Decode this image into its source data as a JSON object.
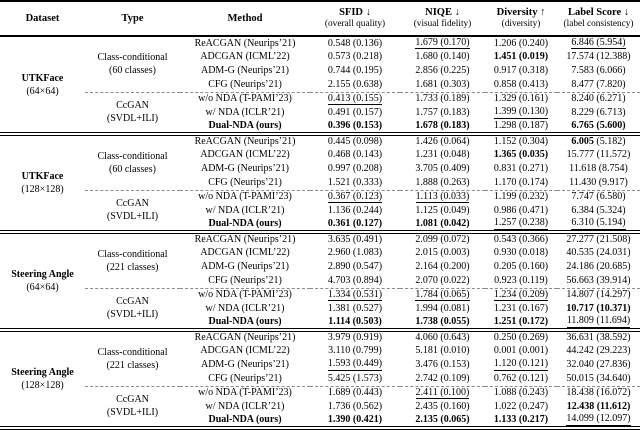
{
  "table": {
    "header": {
      "dataset": "Dataset",
      "type": "Type",
      "method": "Method",
      "metrics": [
        {
          "title": "SFID ↓",
          "subtitle": "(overall quality)"
        },
        {
          "title": "NIQE ↓",
          "subtitle": "(visual fidelity)"
        },
        {
          "title": "Diversity ↑",
          "subtitle": "(diversity)"
        },
        {
          "title": "Label Score ↓",
          "subtitle": "(label consistency)"
        }
      ]
    },
    "blocks": [
      {
        "dataset": "UTKFace",
        "resolution": "(64×64)",
        "groups": [
          {
            "type": "Class-conditional",
            "type_detail": "(60 classes)",
            "rows": [
              {
                "method": "ReACGAN (Neurips’21)",
                "method_bold": false,
                "cells": [
                  {
                    "text": "0.548 (0.136)",
                    "style": "n"
                  },
                  {
                    "text": "1.679 (0.170)",
                    "style": "u"
                  },
                  {
                    "text": "1.206 (0.240)",
                    "style": "n"
                  },
                  {
                    "text": "6.846 (5.954)",
                    "style": "u"
                  }
                ]
              },
              {
                "method": "ADCGAN (ICML’22)",
                "method_bold": false,
                "cells": [
                  {
                    "text": "0.573 (0.218)",
                    "style": "n"
                  },
                  {
                    "text": "1.680 (0.140)",
                    "style": "n"
                  },
                  {
                    "text": "1.451 (0.019)",
                    "style": "b"
                  },
                  {
                    "text": "17.574 (12.388)",
                    "style": "n"
                  }
                ]
              },
              {
                "method": "ADM-G (Neurips’21)",
                "method_bold": false,
                "cells": [
                  {
                    "text": "0.744 (0.195)",
                    "style": "n"
                  },
                  {
                    "text": "2.856 (0.225)",
                    "style": "n"
                  },
                  {
                    "text": "0.917 (0.318)",
                    "style": "n"
                  },
                  {
                    "text": "7.583 (6.066)",
                    "style": "n"
                  }
                ]
              },
              {
                "method": "CFG (Neurips’21)",
                "method_bold": false,
                "cells": [
                  {
                    "text": "2.155 (0.638)",
                    "style": "n"
                  },
                  {
                    "text": "1.681 (0.303)",
                    "style": "n"
                  },
                  {
                    "text": "0.858 (0.413)",
                    "style": "n"
                  },
                  {
                    "text": "8.477 (7.820)",
                    "style": "n"
                  }
                ]
              }
            ]
          },
          {
            "type": "CcGAN",
            "type_detail": "(SVDL+ILI)",
            "rows": [
              {
                "method": "w/o NDA (T-PAMI’23)",
                "method_bold": false,
                "cells": [
                  {
                    "text": "0.413 (0.155)",
                    "style": "u"
                  },
                  {
                    "text": "1.733 (0.189)",
                    "style": "n"
                  },
                  {
                    "text": "1.329 (0.161)",
                    "style": "n"
                  },
                  {
                    "text": "8.240 (6.271)",
                    "style": "n"
                  }
                ]
              },
              {
                "method": "w/ NDA (ICLR’21)",
                "method_bold": false,
                "cells": [
                  {
                    "text": "0.491 (0.157)",
                    "style": "n"
                  },
                  {
                    "text": "1.757 (0.183)",
                    "style": "n"
                  },
                  {
                    "text": "1.399 (0.130)",
                    "style": "u"
                  },
                  {
                    "text": "8.229 (6.713)",
                    "style": "n"
                  }
                ]
              },
              {
                "method": "Dual-NDA (ours)",
                "method_bold": true,
                "cells": [
                  {
                    "text": "0.396 (0.153)",
                    "style": "b"
                  },
                  {
                    "text": "1.678 (0.183)",
                    "style": "b"
                  },
                  {
                    "text": "1.298 (0.187)",
                    "style": "n"
                  },
                  {
                    "text": "6.765 (5.600)",
                    "style": "b"
                  }
                ]
              }
            ]
          }
        ]
      },
      {
        "dataset": "UTKFace",
        "resolution": "(128×128)",
        "groups": [
          {
            "type": "Class-conditional",
            "type_detail": "(60 classes)",
            "rows": [
              {
                "method": "ReACGAN (Neurips’21)",
                "method_bold": false,
                "cells": [
                  {
                    "text": "0.445 (0.098)",
                    "style": "n"
                  },
                  {
                    "text": "1.426 (0.064)",
                    "style": "n"
                  },
                  {
                    "text": "1.152 (0.304)",
                    "style": "n"
                  },
                  {
                    "text": "6.005 (5.182)",
                    "style": "bm"
                  }
                ]
              },
              {
                "method": "ADCGAN (ICML’22)",
                "method_bold": false,
                "cells": [
                  {
                    "text": "0.468 (0.143)",
                    "style": "n"
                  },
                  {
                    "text": "1.231 (0.048)",
                    "style": "n"
                  },
                  {
                    "text": "1.365 (0.035)",
                    "style": "b"
                  },
                  {
                    "text": "15.777 (11.572)",
                    "style": "n"
                  }
                ]
              },
              {
                "method": "ADM-G (Neurips’21)",
                "method_bold": false,
                "cells": [
                  {
                    "text": "0.997 (0.208)",
                    "style": "n"
                  },
                  {
                    "text": "3.705 (0.409)",
                    "style": "n"
                  },
                  {
                    "text": "0.831 (0.271)",
                    "style": "n"
                  },
                  {
                    "text": "11.618 (8.754)",
                    "style": "n"
                  }
                ]
              },
              {
                "method": "CFG (Neurips’21)",
                "method_bold": false,
                "cells": [
                  {
                    "text": "1.521 (0.333)",
                    "style": "n"
                  },
                  {
                    "text": "1.888 (0.263)",
                    "style": "n"
                  },
                  {
                    "text": "1.170 (0.174)",
                    "style": "n"
                  },
                  {
                    "text": "11.430 (9.917)",
                    "style": "n"
                  }
                ]
              }
            ]
          },
          {
            "type": "CcGAN",
            "type_detail": "(SVDL+ILI)",
            "rows": [
              {
                "method": "w/o NDA (T-PAMI’23)",
                "method_bold": false,
                "cells": [
                  {
                    "text": "0.367 (0.123)",
                    "style": "u"
                  },
                  {
                    "text": "1.113 (0.033)",
                    "style": "u"
                  },
                  {
                    "text": "1.199 (0.232)",
                    "style": "n"
                  },
                  {
                    "text": "7.747 (6.580)",
                    "style": "n"
                  }
                ]
              },
              {
                "method": "w/ NDA (ICLR’21)",
                "method_bold": false,
                "cells": [
                  {
                    "text": "1.136 (0.244)",
                    "style": "n"
                  },
                  {
                    "text": "1.125 (0.049)",
                    "style": "n"
                  },
                  {
                    "text": "0.986 (0.471)",
                    "style": "n"
                  },
                  {
                    "text": "6.384 (5.324)",
                    "style": "n"
                  }
                ]
              },
              {
                "method": "Dual-NDA (ours)",
                "method_bold": true,
                "cells": [
                  {
                    "text": "0.361 (0.127)",
                    "style": "b"
                  },
                  {
                    "text": "1.081 (0.042)",
                    "style": "b"
                  },
                  {
                    "text": "1.257 (0.238)",
                    "style": "u"
                  },
                  {
                    "text": "6.310 (5.194)",
                    "style": "u"
                  }
                ]
              }
            ]
          }
        ]
      },
      {
        "dataset": "Steering Angle",
        "resolution": "(64×64)",
        "groups": [
          {
            "type": "Class-conditional",
            "type_detail": "(221 classes)",
            "rows": [
              {
                "method": "ReACGAN (Neurips’21)",
                "method_bold": false,
                "cells": [
                  {
                    "text": "3.635 (0.491)",
                    "style": "n"
                  },
                  {
                    "text": "2.099 (0.072)",
                    "style": "n"
                  },
                  {
                    "text": "0.543 (0.366)",
                    "style": "n"
                  },
                  {
                    "text": "27.277 (21.508)",
                    "style": "n"
                  }
                ]
              },
              {
                "method": "ADCGAN (ICML’22)",
                "method_bold": false,
                "cells": [
                  {
                    "text": "2.960 (1.083)",
                    "style": "n"
                  },
                  {
                    "text": "2.015 (0.003)",
                    "style": "n"
                  },
                  {
                    "text": "0.930 (0.018)",
                    "style": "n"
                  },
                  {
                    "text": "40.535 (24.031)",
                    "style": "n"
                  }
                ]
              },
              {
                "method": "ADM-G (Neurips’21)",
                "method_bold": false,
                "cells": [
                  {
                    "text": "2.890 (0.547)",
                    "style": "n"
                  },
                  {
                    "text": "2.164 (0.200)",
                    "style": "n"
                  },
                  {
                    "text": "0.205 (0.160)",
                    "style": "n"
                  },
                  {
                    "text": "24.186 (20.685)",
                    "style": "n"
                  }
                ]
              },
              {
                "method": "CFG (Neurips’21)",
                "method_bold": false,
                "cells": [
                  {
                    "text": "4.703 (0.894)",
                    "style": "n"
                  },
                  {
                    "text": "2.070 (0.022)",
                    "style": "n"
                  },
                  {
                    "text": "0.923 (0.119)",
                    "style": "n"
                  },
                  {
                    "text": "56.663 (39.914)",
                    "style": "n"
                  }
                ]
              }
            ]
          },
          {
            "type": "CcGAN",
            "type_detail": "(SVDL+ILI)",
            "rows": [
              {
                "method": "w/o NDA (T-PAMI’23)",
                "method_bold": false,
                "cells": [
                  {
                    "text": "1.334 (0.531)",
                    "style": "u"
                  },
                  {
                    "text": "1.784 (0.065)",
                    "style": "u"
                  },
                  {
                    "text": "1.234 (0.209)",
                    "style": "u"
                  },
                  {
                    "text": "14.807 (14.297)",
                    "style": "n"
                  }
                ]
              },
              {
                "method": "w/ NDA (ICLR’21)",
                "method_bold": false,
                "cells": [
                  {
                    "text": "1.381 (0.527)",
                    "style": "n"
                  },
                  {
                    "text": "1.994 (0.081)",
                    "style": "n"
                  },
                  {
                    "text": "1.231 (0.167)",
                    "style": "n"
                  },
                  {
                    "text": "10.717 (10.371)",
                    "style": "b"
                  }
                ]
              },
              {
                "method": "Dual-NDA (ours)",
                "method_bold": true,
                "cells": [
                  {
                    "text": "1.114 (0.503)",
                    "style": "b"
                  },
                  {
                    "text": "1.738 (0.055)",
                    "style": "b"
                  },
                  {
                    "text": "1.251 (0.172)",
                    "style": "b"
                  },
                  {
                    "text": "11.809 (11.694)",
                    "style": "u"
                  }
                ]
              }
            ]
          }
        ]
      },
      {
        "dataset": "Steering Angle",
        "resolution": "(128×128)",
        "groups": [
          {
            "type": "Class-conditional",
            "type_detail": "(221 classes)",
            "rows": [
              {
                "method": "ReACGAN (Neurips’21)",
                "method_bold": false,
                "cells": [
                  {
                    "text": "3.979 (0.919)",
                    "style": "n"
                  },
                  {
                    "text": "4.060 (0.643)",
                    "style": "n"
                  },
                  {
                    "text": "0.250 (0.269)",
                    "style": "n"
                  },
                  {
                    "text": "36.631 (38.592)",
                    "style": "n"
                  }
                ]
              },
              {
                "method": "ADCGAN (ICML’22)",
                "method_bold": false,
                "cells": [
                  {
                    "text": "3.110 (0.799)",
                    "style": "n"
                  },
                  {
                    "text": "5.181 (0.010)",
                    "style": "n"
                  },
                  {
                    "text": "0.001 (0.001)",
                    "style": "n"
                  },
                  {
                    "text": "44.242 (29.223)",
                    "style": "n"
                  }
                ]
              },
              {
                "method": "ADM-G (Neurips’21)",
                "method_bold": false,
                "cells": [
                  {
                    "text": "1.593 (0.449)",
                    "style": "u"
                  },
                  {
                    "text": "3.476 (0.153)",
                    "style": "n"
                  },
                  {
                    "text": "1.120 (0.121)",
                    "style": "u"
                  },
                  {
                    "text": "32.040 (27.836)",
                    "style": "n"
                  }
                ]
              },
              {
                "method": "CFG (Neurips’21)",
                "method_bold": false,
                "cells": [
                  {
                    "text": "5.425 (1.573)",
                    "style": "n"
                  },
                  {
                    "text": "2.742 (0.109)",
                    "style": "n"
                  },
                  {
                    "text": "0.762 (0.121)",
                    "style": "n"
                  },
                  {
                    "text": "50.015 (34.640)",
                    "style": "n"
                  }
                ]
              }
            ]
          },
          {
            "type": "CcGAN",
            "type_detail": "(SVDL+ILI)",
            "rows": [
              {
                "method": "w/o NDA (T-PAMI’23)",
                "method_bold": false,
                "cells": [
                  {
                    "text": "1.689 (0.443)",
                    "style": "n"
                  },
                  {
                    "text": "2.411 (0.100)",
                    "style": "u"
                  },
                  {
                    "text": "1.088 (0.243)",
                    "style": "n"
                  },
                  {
                    "text": "18.438 (16.072)",
                    "style": "n"
                  }
                ]
              },
              {
                "method": "w/ NDA (ICLR’21)",
                "method_bold": false,
                "cells": [
                  {
                    "text": "1.736 (0.562)",
                    "style": "n"
                  },
                  {
                    "text": "2.435 (0.160)",
                    "style": "n"
                  },
                  {
                    "text": "1.022 (0.247)",
                    "style": "n"
                  },
                  {
                    "text": "12.438 (11.612)",
                    "style": "b"
                  }
                ]
              },
              {
                "method": "Dual-NDA (ours)",
                "method_bold": true,
                "cells": [
                  {
                    "text": "1.390 (0.421)",
                    "style": "b"
                  },
                  {
                    "text": "2.135 (0.065)",
                    "style": "b"
                  },
                  {
                    "text": "1.133 (0.217)",
                    "style": "b"
                  },
                  {
                    "text": "14.099 (12.097)",
                    "style": "u"
                  }
                ]
              }
            ]
          }
        ]
      }
    ]
  }
}
